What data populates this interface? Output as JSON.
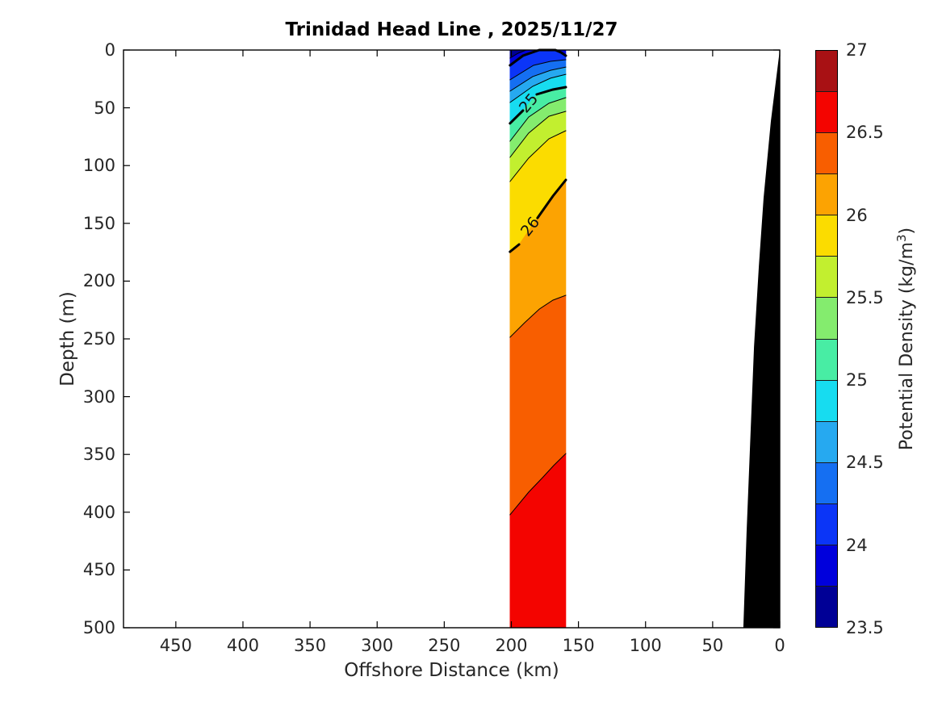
{
  "title": "Trinidad Head Line , 2025/11/27",
  "axes": {
    "x": {
      "label": "Offshore Distance (km)",
      "ticks": [
        450,
        400,
        350,
        300,
        250,
        200,
        150,
        100,
        50,
        0
      ],
      "range_km": [
        0,
        489
      ],
      "reversed": true
    },
    "y": {
      "label": "Depth (m)",
      "ticks": [
        0,
        50,
        100,
        150,
        200,
        250,
        300,
        350,
        400,
        450,
        500
      ],
      "range_m": [
        0,
        500
      ],
      "increases_downward": true
    }
  },
  "colorbar": {
    "label_prefix": "Potential Density (kg/m",
    "label_sup": "3",
    "label_suffix": ")",
    "ticks": [
      27,
      26.5,
      26,
      25.5,
      25,
      24.5,
      24,
      23.5
    ],
    "range": [
      23.5,
      27
    ],
    "step": 0.25
  },
  "chart_data": {
    "type": "filled_contour_section",
    "title": "Trinidad Head Line , 2025/11/27",
    "xlabel": "Offshore Distance (km)",
    "ylabel": "Depth (m)",
    "colorbar_label": "Potential Density (kg/m3)",
    "x_range_km": [
      0,
      489
    ],
    "x_axis_reversed": true,
    "depth_range_m": [
      0,
      500
    ],
    "section_band_km": [
      201,
      159.4
    ],
    "levels": [
      23.5,
      23.75,
      24,
      24.25,
      24.5,
      24.75,
      25,
      25.25,
      25.5,
      25.75,
      26,
      26.25,
      26.5,
      26.75,
      27
    ],
    "level_colors": [
      "#000096",
      "#0000DC",
      "#0B35F7",
      "#156FF2",
      "#26A9F0",
      "#17DCF0",
      "#48EDA4",
      "#84EC6E",
      "#C2EF2F",
      "#FBDC00",
      "#FCA302",
      "#F85E00",
      "#F40400",
      "#A81114"
    ],
    "bold_levels": [
      24,
      25,
      26
    ],
    "isopycnals": [
      {
        "sigma": 23.75,
        "bold": false,
        "pts": [
          [
            201,
            7
          ],
          [
            195,
            2.8
          ],
          [
            189,
            0
          ],
          [
            159.4,
            0
          ]
        ],
        "stroke": [
          [
            [
              201,
              7
            ],
            [
              195,
              2.8
            ],
            [
              189,
              0
            ]
          ]
        ]
      },
      {
        "sigma": 24.0,
        "bold": true,
        "pts": [
          [
            201,
            13.3
          ],
          [
            191.3,
            4.9
          ],
          [
            179.2,
            0
          ],
          [
            167.2,
            0
          ],
          [
            163,
            2.1
          ],
          [
            159.4,
            4.9
          ]
        ],
        "stroke": [
          [
            [
              201,
              13.3
            ],
            [
              191.3,
              4.9
            ],
            [
              179.2,
              0
            ],
            [
              167.2,
              0
            ],
            [
              163,
              2.1
            ],
            [
              159.4,
              4.9
            ]
          ]
        ]
      },
      {
        "sigma": 24.25,
        "bold": false,
        "pts": [
          [
            201,
            25.8
          ],
          [
            183.5,
            13.3
          ],
          [
            170.8,
            9.8
          ],
          [
            159.4,
            8.4
          ]
        ]
      },
      {
        "sigma": 24.5,
        "bold": false,
        "pts": [
          [
            201,
            35.6
          ],
          [
            184.1,
            23
          ],
          [
            170.8,
            17.5
          ],
          [
            159.4,
            14.7
          ]
        ]
      },
      {
        "sigma": 24.75,
        "bold": false,
        "pts": [
          [
            201,
            45.4
          ],
          [
            184.1,
            31.4
          ],
          [
            170.8,
            24.4
          ],
          [
            159.4,
            21
          ]
        ]
      },
      {
        "sigma": 25.0,
        "bold": true,
        "pts": [
          [
            201,
            63.5
          ],
          [
            191.3,
            52.4
          ],
          [
            181.1,
            38.4
          ],
          [
            169,
            34.2
          ],
          [
            159.4,
            32.1
          ]
        ],
        "stroke": [
          [
            [
              201,
              63.5
            ],
            [
              191.3,
              52.4
            ]
          ],
          [
            [
              181.1,
              38.4
            ],
            [
              169,
              34.2
            ],
            [
              159.4,
              32.1
            ]
          ]
        ]
      },
      {
        "sigma": 25.25,
        "bold": false,
        "pts": [
          [
            201,
            78.9
          ],
          [
            187.1,
            58
          ],
          [
            172,
            46.1
          ],
          [
            159.4,
            41.2
          ]
        ]
      },
      {
        "sigma": 25.5,
        "bold": false,
        "pts": [
          [
            201,
            92.9
          ],
          [
            187.1,
            71.9
          ],
          [
            172,
            57.3
          ],
          [
            159.4,
            53.1
          ]
        ]
      },
      {
        "sigma": 25.75,
        "bold": false,
        "pts": [
          [
            201,
            113.8
          ],
          [
            187.1,
            93.6
          ],
          [
            172,
            76.8
          ],
          [
            159.4,
            69.8
          ]
        ]
      },
      {
        "sigma": 26.0,
        "bold": true,
        "pts": [
          [
            201,
            174.6
          ],
          [
            194.3,
            168.3
          ],
          [
            180.5,
            145.3
          ],
          [
            169,
            126.4
          ],
          [
            159.4,
            112.4
          ]
        ],
        "stroke": [
          [
            [
              201,
              174.6
            ],
            [
              194.3,
              168.3
            ]
          ],
          [
            [
              180.5,
              145.3
            ],
            [
              169,
              126.4
            ],
            [
              159.4,
              112.4
            ]
          ]
        ]
      },
      {
        "sigma": 26.25,
        "bold": false,
        "pts": [
          [
            201,
            248.6
          ],
          [
            190.1,
            236
          ],
          [
            179.2,
            224.2
          ],
          [
            169,
            216.5
          ],
          [
            159.4,
            212.3
          ]
        ]
      },
      {
        "sigma": 26.5,
        "bold": false,
        "pts": [
          [
            201,
            402.2
          ],
          [
            187.1,
            382.7
          ],
          [
            176.8,
            370.1
          ],
          [
            168.4,
            359.6
          ],
          [
            159.4,
            349.2
          ]
        ]
      }
    ],
    "contour_labels": [
      {
        "text": "25",
        "km": 186.8,
        "depth_m": 46,
        "rot": -50
      },
      {
        "text": "26",
        "km": 185.8,
        "depth_m": 153,
        "rot": -52
      }
    ],
    "bathymetry_mask_pts": [
      [
        0,
        0
      ],
      [
        6.6,
        61.5
      ],
      [
        12,
        127.8
      ],
      [
        15.6,
        187.2
      ],
      [
        19.2,
        257
      ],
      [
        22.3,
        347.8
      ],
      [
        24.7,
        417.6
      ],
      [
        27.1,
        500
      ],
      [
        0,
        500
      ]
    ],
    "bathymetry_color": "#000000",
    "grid": false,
    "legend": "colorbar-right"
  }
}
